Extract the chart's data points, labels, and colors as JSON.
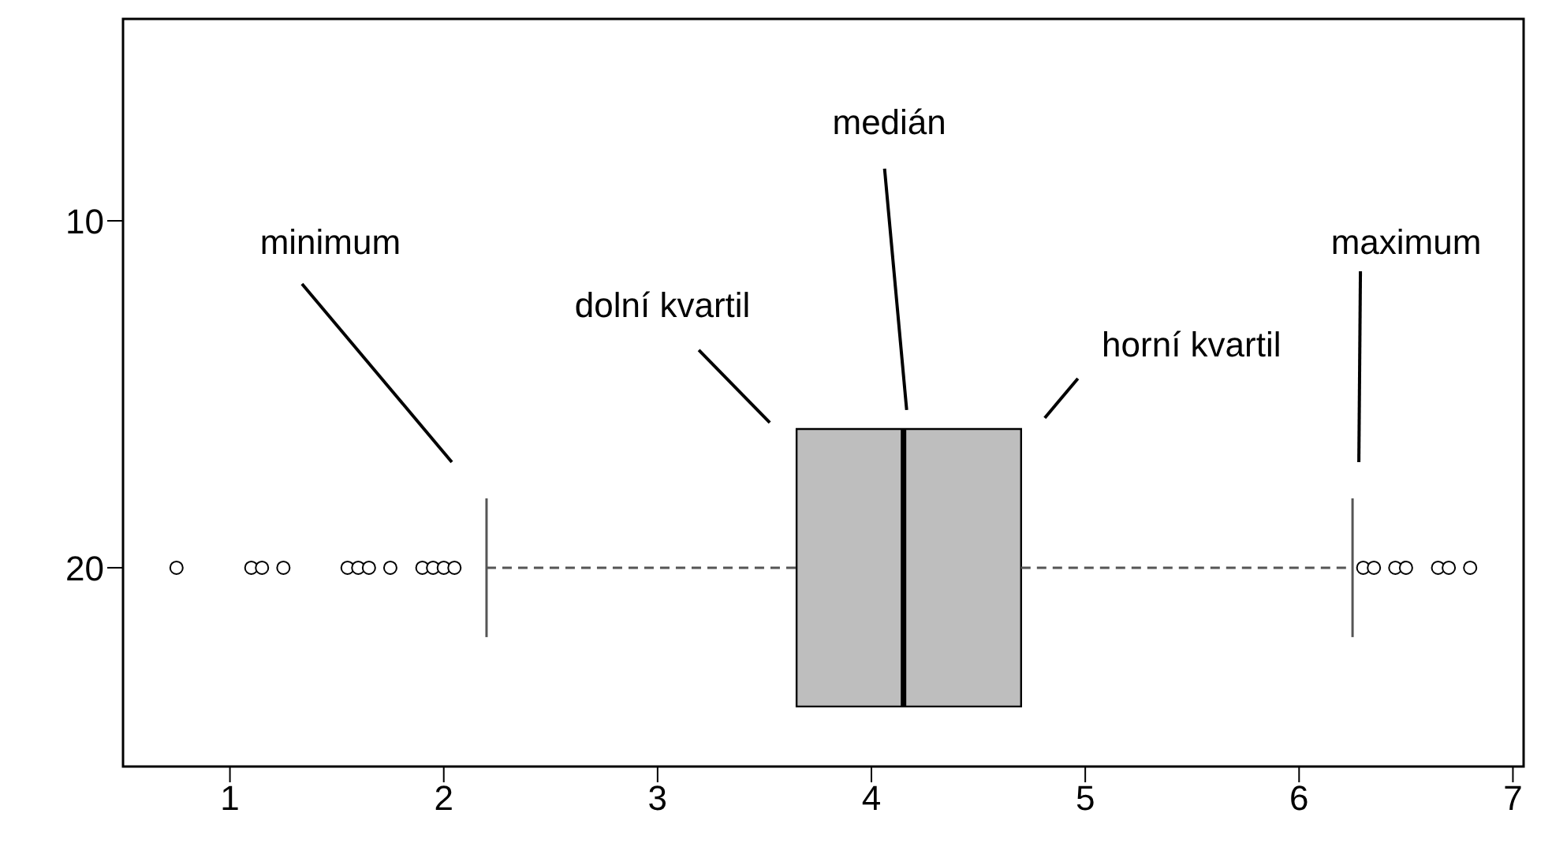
{
  "chart_data": {
    "type": "box",
    "orientation": "horizontal",
    "categories": [
      "10",
      "20"
    ],
    "series": [
      {
        "color": "#bebebe",
        "boxes": [
          null,
          {
            "low": 2.2,
            "q1": 3.65,
            "median": 4.15,
            "q3": 4.7,
            "high": 6.25,
            "outliers": [
              0.75,
              1.1,
              1.15,
              1.25,
              1.55,
              1.6,
              1.65,
              1.75,
              1.9,
              1.95,
              2.0,
              2.05,
              6.3,
              6.35,
              6.45,
              6.5,
              6.65,
              6.7,
              6.8
            ]
          }
        ]
      }
    ],
    "xlim": [
      0.5,
      7.05
    ],
    "xticks": [
      1,
      2,
      3,
      4,
      5,
      6,
      7
    ],
    "grid": false,
    "legend": false,
    "annotations": [
      "minimum",
      "dolní kvartil",
      "medián",
      "horní kvartil",
      "maximum"
    ]
  }
}
